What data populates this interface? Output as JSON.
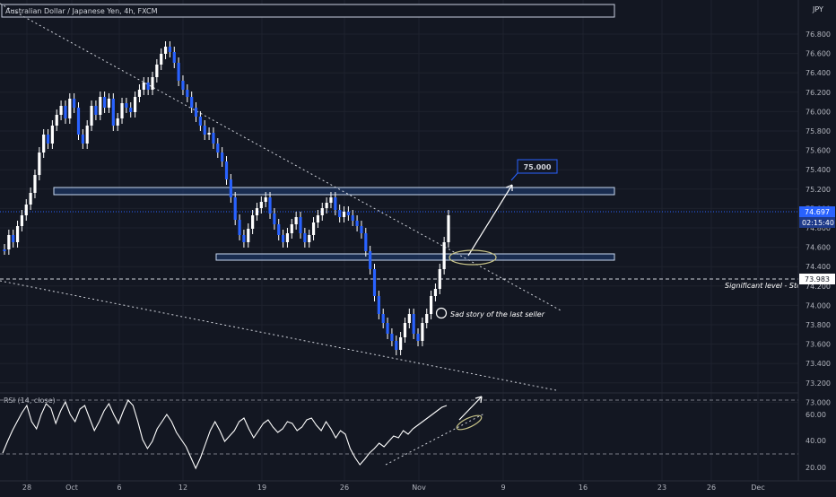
{
  "header": {
    "title": "Australian Dollar / Japanese Yen, 4h, FXCM",
    "currency": "JPY"
  },
  "price_axis": {
    "ticks": [
      "76.800",
      "76.600",
      "76.400",
      "76.200",
      "76.000",
      "75.800",
      "75.600",
      "75.400",
      "75.200",
      "75.000",
      "74.800",
      "74.600",
      "74.400",
      "74.200",
      "74.000",
      "73.800",
      "73.600",
      "73.400",
      "73.200",
      "73.000"
    ],
    "current_price": "74.697",
    "countdown": "02:15:40",
    "level_label": "73.983"
  },
  "time_axis": {
    "ticks": [
      "28",
      "Oct",
      "6",
      "12",
      "19",
      "26",
      "Nov",
      "9",
      "16",
      "23",
      "26",
      "Dec"
    ]
  },
  "annotations": {
    "target_label": "75.000",
    "seller_note": "Sad story of the last seller",
    "significant_level": "Significant level - Stop"
  },
  "rsi": {
    "title": "RSI (14, close)",
    "ticks": [
      "60.00",
      "40.00",
      "20.00"
    ]
  },
  "colors": {
    "background": "#131722",
    "candle": "#2962ff",
    "wick": "#ffffff",
    "zone": "#1e3a6e",
    "accent": "#2962ff",
    "ellipse": "#c9c58a"
  }
}
